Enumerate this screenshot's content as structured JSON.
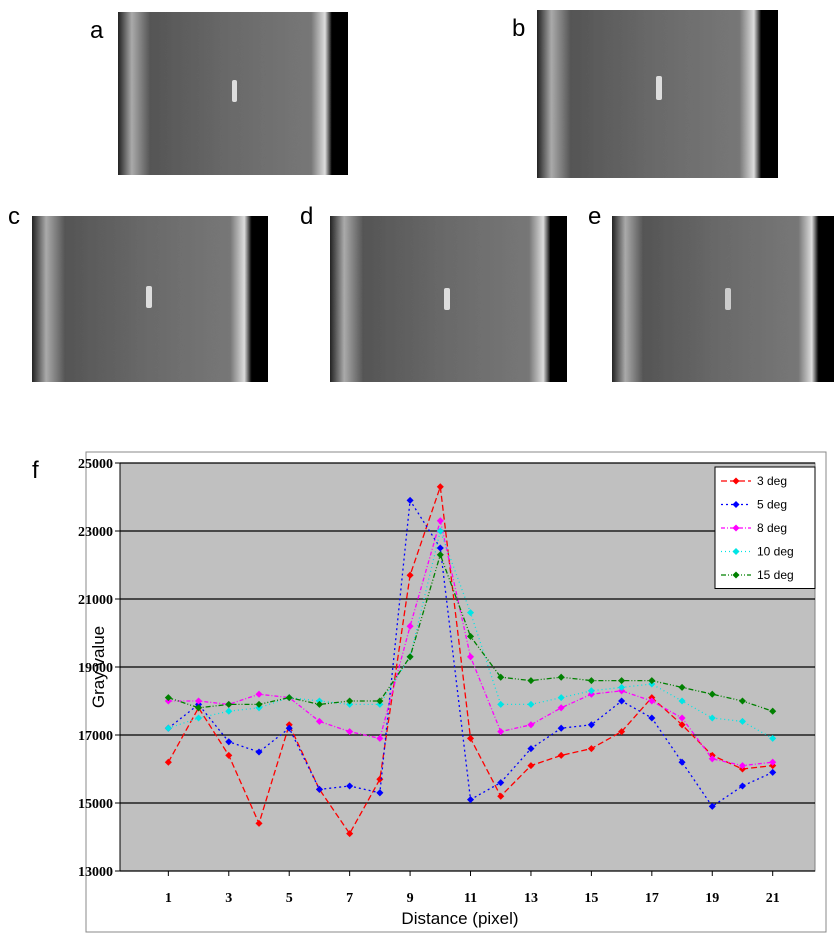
{
  "panel_labels": [
    "a",
    "b",
    "c",
    "d",
    "e"
  ],
  "chart_data": {
    "type": "line",
    "panel_label": "f",
    "x_label": "Distance (pixel)",
    "y_label": "Gray value",
    "x": [
      1,
      2,
      3,
      4,
      5,
      6,
      7,
      8,
      9,
      10,
      11,
      12,
      13,
      14,
      15,
      16,
      17,
      18,
      19,
      20,
      21
    ],
    "xlim": [
      -0.6,
      22.4
    ],
    "xticks": [
      1,
      3,
      5,
      7,
      9,
      11,
      13,
      15,
      17,
      19,
      21
    ],
    "ylim": [
      13000,
      25000
    ],
    "yticks": [
      13000,
      15000,
      17000,
      19000,
      21000,
      23000,
      25000
    ],
    "grid": true,
    "legend": "upper right",
    "series": [
      {
        "name": "3 deg",
        "color": "#ff0000",
        "values": [
          16200,
          17800,
          16400,
          14400,
          17300,
          15400,
          14100,
          15700,
          21700,
          24300,
          16900,
          15200,
          16100,
          16400,
          16600,
          17100,
          18100,
          17300,
          16400,
          16000,
          16100
        ]
      },
      {
        "name": "5 deg",
        "color": "#0000ff",
        "values": [
          17200,
          17900,
          16800,
          16500,
          17200,
          15400,
          15500,
          15300,
          23900,
          22500,
          15100,
          15600,
          16600,
          17200,
          17300,
          18000,
          17500,
          16200,
          14900,
          15500,
          15900
        ]
      },
      {
        "name": "8 deg",
        "color": "#ff00ff",
        "values": [
          18000,
          18000,
          17900,
          18200,
          18100,
          17400,
          17100,
          16900,
          20200,
          23300,
          19300,
          17100,
          17300,
          17800,
          18200,
          18300,
          18000,
          17500,
          16300,
          16100,
          16200
        ]
      },
      {
        "name": "10 deg",
        "color": "#00e5e5",
        "values": [
          17200,
          17500,
          17700,
          17800,
          18100,
          18000,
          17900,
          17900,
          19300,
          23000,
          20600,
          17900,
          17900,
          18100,
          18300,
          18400,
          18500,
          18000,
          17500,
          17400,
          16900
        ]
      },
      {
        "name": "15 deg",
        "color": "#008000",
        "values": [
          18100,
          17800,
          17900,
          17900,
          18100,
          17900,
          18000,
          18000,
          19300,
          22300,
          19900,
          18700,
          18600,
          18700,
          18600,
          18600,
          18600,
          18400,
          18200,
          18000,
          17700
        ]
      }
    ]
  }
}
